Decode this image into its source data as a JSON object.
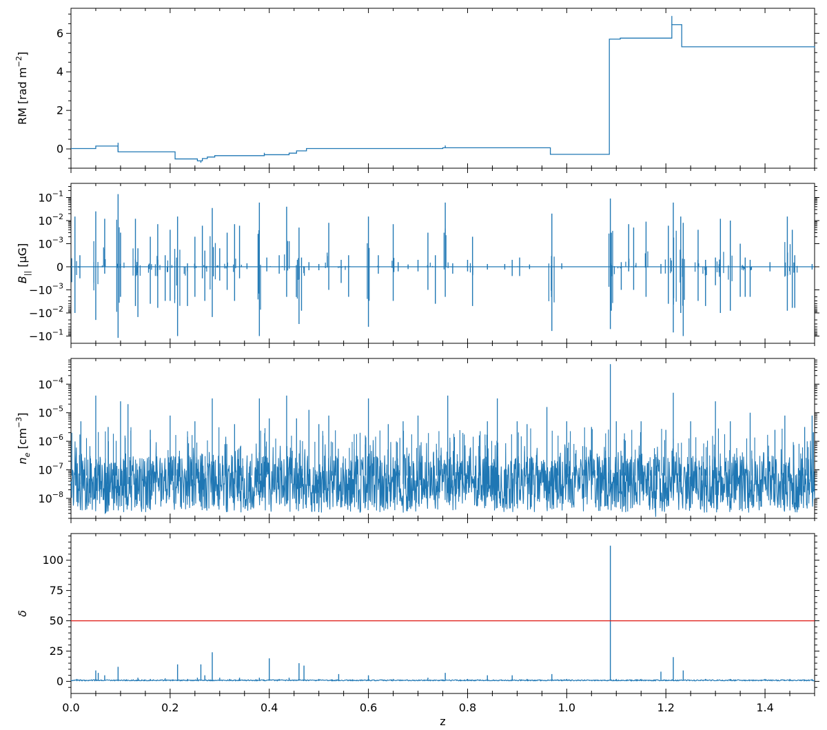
{
  "chart_data": [
    {
      "type": "line",
      "id": "rm",
      "ylabel": "RM [rad m⁻²]",
      "ylabel_main": "RM [rad m",
      "ylabel_sup": "−2",
      "ylabel_end": "]",
      "xlim": [
        0.0,
        1.5
      ],
      "ylim": [
        -1.0,
        7.3
      ],
      "yticks": [
        0,
        2,
        4,
        6
      ],
      "ytick_labels": [
        "0",
        "2",
        "4",
        "6"
      ],
      "color": "#1f77b4",
      "steps": [
        [
          0.0,
          0.02
        ],
        [
          0.05,
          0.15
        ],
        [
          0.095,
          -0.15
        ],
        [
          0.21,
          -0.52
        ],
        [
          0.255,
          -0.62
        ],
        [
          0.265,
          -0.5
        ],
        [
          0.275,
          -0.42
        ],
        [
          0.29,
          -0.35
        ],
        [
          0.39,
          -0.3
        ],
        [
          0.44,
          -0.22
        ],
        [
          0.455,
          -0.1
        ],
        [
          0.475,
          0.02
        ],
        [
          0.75,
          0.06
        ],
        [
          0.967,
          -0.28
        ],
        [
          1.086,
          5.7
        ],
        [
          1.108,
          5.75
        ],
        [
          1.212,
          6.45
        ],
        [
          1.232,
          5.3
        ],
        [
          1.5,
          5.25
        ]
      ],
      "spikes": [
        [
          0.095,
          0.32
        ],
        [
          0.262,
          -0.72
        ],
        [
          0.39,
          -0.2
        ],
        [
          0.755,
          0.18
        ],
        [
          1.212,
          6.9
        ]
      ]
    },
    {
      "type": "line",
      "id": "bpar",
      "ylabel": "B|| [μG]",
      "ylabel_main": "B",
      "ylabel_sub": "||",
      "ylabel_end": " [μG]",
      "xlim": [
        0.0,
        1.5
      ],
      "yscale": "symlog",
      "ylim": [
        -0.2,
        0.2
      ],
      "yticks_labels": [
        "10⁻¹",
        "10⁻²",
        "10⁻³",
        "0",
        "−10⁻³",
        "−10⁻²",
        "−10⁻¹"
      ],
      "yticks": [
        {
          "base": "10",
          "exp": "−1",
          "sign": ""
        },
        {
          "base": "10",
          "exp": "−2",
          "sign": ""
        },
        {
          "base": "10",
          "exp": "−3",
          "sign": ""
        },
        {
          "base": "0",
          "exp": "",
          "sign": ""
        },
        {
          "base": "10",
          "exp": "−3",
          "sign": "−"
        },
        {
          "base": "10",
          "exp": "−2",
          "sign": "−"
        },
        {
          "base": "10",
          "exp": "−1",
          "sign": "−"
        }
      ],
      "color": "#1f77b4",
      "spikes": [
        [
          0.008,
          0.015,
          -0.01
        ],
        [
          0.018,
          0.0005,
          -0.0005
        ],
        [
          0.05,
          0.025,
          -0.02
        ],
        [
          0.068,
          0.012,
          -0.0003
        ],
        [
          0.095,
          0.14,
          -0.12
        ],
        [
          0.1,
          0.003,
          -0.002
        ],
        [
          0.13,
          0.012,
          -0.005
        ],
        [
          0.135,
          0.0008,
          -0.015
        ],
        [
          0.16,
          0.002,
          -0.004
        ],
        [
          0.175,
          0.007,
          -0.006
        ],
        [
          0.19,
          0.0005,
          -0.003
        ],
        [
          0.2,
          0.004,
          -0.003
        ],
        [
          0.215,
          0.015,
          -0.1
        ],
        [
          0.235,
          0.00015,
          -0.005
        ],
        [
          0.25,
          0.002,
          -0.002
        ],
        [
          0.265,
          0.006,
          -0.0005
        ],
        [
          0.27,
          0.0007,
          -0.003
        ],
        [
          0.285,
          0.035,
          -0.015
        ],
        [
          0.3,
          0.0008,
          -0.0006
        ],
        [
          0.315,
          0.003,
          -0.001
        ],
        [
          0.33,
          0.007,
          -0.003
        ],
        [
          0.34,
          0.006,
          -0.0005
        ],
        [
          0.355,
          0.00015,
          -0.0001
        ],
        [
          0.38,
          0.06,
          -0.1
        ],
        [
          0.395,
          0.0004,
          -0.0002
        ],
        [
          0.42,
          0.0005,
          -0.0003
        ],
        [
          0.435,
          0.04,
          -0.002
        ],
        [
          0.46,
          0.005,
          -0.03
        ],
        [
          0.465,
          0.0004,
          -0.008
        ],
        [
          0.48,
          0.0002,
          -0.00015
        ],
        [
          0.5,
          0.00012,
          -0.00015
        ],
        [
          0.52,
          0.008,
          -0.001
        ],
        [
          0.545,
          0.0003,
          -0.0007
        ],
        [
          0.56,
          0.0005,
          -0.002
        ],
        [
          0.6,
          0.015,
          -0.04
        ],
        [
          0.62,
          0.0005,
          -0.0003
        ],
        [
          0.65,
          0.007,
          -0.003
        ],
        [
          0.66,
          0.0002,
          -0.0002
        ],
        [
          0.68,
          0.0001,
          -0.0001
        ],
        [
          0.7,
          0.0003,
          -0.0002
        ],
        [
          0.72,
          0.003,
          -0.001
        ],
        [
          0.735,
          0.0005,
          -0.004
        ],
        [
          0.755,
          0.06,
          -0.002
        ],
        [
          0.77,
          0.00015,
          -0.0003
        ],
        [
          0.8,
          0.0003,
          -0.0002
        ],
        [
          0.81,
          0.002,
          -0.005
        ],
        [
          0.84,
          0.00012,
          -0.00012
        ],
        [
          0.875,
          0.00012,
          -0.00012
        ],
        [
          0.89,
          0.0003,
          -0.0004
        ],
        [
          0.905,
          0.0004,
          -0.0004
        ],
        [
          0.925,
          0.0001,
          -0.0001
        ],
        [
          0.97,
          0.02,
          -0.06
        ],
        [
          0.99,
          0.00015,
          -0.0001
        ],
        [
          1.088,
          0.09,
          -0.05
        ],
        [
          1.09,
          0.003,
          -0.008
        ],
        [
          1.11,
          0.0002,
          -0.001
        ],
        [
          1.125,
          0.007,
          -0.0002
        ],
        [
          1.135,
          0.005,
          -0.001
        ],
        [
          1.16,
          0.009,
          -0.002
        ],
        [
          1.19,
          0.00012,
          -0.0003
        ],
        [
          1.205,
          0.006,
          -0.004
        ],
        [
          1.215,
          0.06,
          -0.07
        ],
        [
          1.23,
          0.015,
          -0.01
        ],
        [
          1.235,
          0.008,
          -0.1
        ],
        [
          1.265,
          0.004,
          -0.003
        ],
        [
          1.28,
          0.0003,
          -0.005
        ],
        [
          1.3,
          0.0004,
          -0.0008
        ],
        [
          1.31,
          0.012,
          -0.01
        ],
        [
          1.33,
          0.01,
          -0.008
        ],
        [
          1.35,
          0.001,
          -0.002
        ],
        [
          1.36,
          0.0004,
          -0.002
        ],
        [
          1.37,
          0.0003,
          -0.002
        ],
        [
          1.41,
          0.0002,
          -0.0002
        ],
        [
          1.445,
          0.015,
          -0.008
        ],
        [
          1.455,
          0.004,
          -0.006
        ],
        [
          1.46,
          0.0005,
          -0.006
        ],
        [
          1.495,
          0.00012,
          -0.00012
        ]
      ]
    },
    {
      "type": "line",
      "id": "ne",
      "ylabel": "nₑ [cm⁻³]",
      "ylabel_main": "n",
      "ylabel_sub": "e",
      "ylabel_mid": " [cm",
      "ylabel_sup": "−3",
      "ylabel_end": "]",
      "xlim": [
        0.0,
        1.5
      ],
      "yscale": "log",
      "ylim_exp": [
        -8.7,
        -3.1
      ],
      "yticks": [
        {
          "base": "10",
          "exp": "−4"
        },
        {
          "base": "10",
          "exp": "−5"
        },
        {
          "base": "10",
          "exp": "−6"
        },
        {
          "base": "10",
          "exp": "−7"
        },
        {
          "base": "10",
          "exp": "−8"
        }
      ],
      "ytick_labels": [
        "10⁻⁴",
        "10⁻⁵",
        "10⁻⁶",
        "10⁻⁷",
        "10⁻⁸"
      ],
      "color": "#1f77b4",
      "baseline_exp": -7.5,
      "noise_exp": [
        -8.5,
        -6.5
      ],
      "peaks": [
        [
          0.02,
          -5.3
        ],
        [
          0.05,
          -4.4
        ],
        [
          0.075,
          -5.5
        ],
        [
          0.1,
          -4.6
        ],
        [
          0.115,
          -4.7
        ],
        [
          0.16,
          -5.6
        ],
        [
          0.2,
          -5.1
        ],
        [
          0.25,
          -5.3
        ],
        [
          0.285,
          -4.5
        ],
        [
          0.33,
          -5.4
        ],
        [
          0.38,
          -4.5
        ],
        [
          0.4,
          -5.2
        ],
        [
          0.435,
          -4.4
        ],
        [
          0.455,
          -5.2
        ],
        [
          0.48,
          -4.9
        ],
        [
          0.5,
          -5.4
        ],
        [
          0.52,
          -5.1
        ],
        [
          0.6,
          -4.5
        ],
        [
          0.64,
          -5.4
        ],
        [
          0.67,
          -5.3
        ],
        [
          0.7,
          -5.1
        ],
        [
          0.76,
          -4.4
        ],
        [
          0.84,
          -5.3
        ],
        [
          0.86,
          -4.5
        ],
        [
          0.9,
          -5.3
        ],
        [
          0.92,
          -5.4
        ],
        [
          0.96,
          -4.8
        ],
        [
          1.0,
          -5.3
        ],
        [
          1.05,
          -5.5
        ],
        [
          1.088,
          -3.3
        ],
        [
          1.1,
          -5.3
        ],
        [
          1.15,
          -5.3
        ],
        [
          1.2,
          -5.6
        ],
        [
          1.215,
          -4.3
        ],
        [
          1.25,
          -5.3
        ],
        [
          1.3,
          -4.6
        ],
        [
          1.33,
          -5.3
        ],
        [
          1.37,
          -5.0
        ],
        [
          1.42,
          -5.6
        ],
        [
          1.44,
          -5.1
        ],
        [
          1.48,
          -5.5
        ],
        [
          1.495,
          -5.1
        ]
      ]
    },
    {
      "type": "line",
      "id": "delta",
      "ylabel": "δ",
      "xlabel": "z",
      "xlim": [
        0.0,
        1.5
      ],
      "ylim": [
        -10,
        122
      ],
      "yticks": [
        0,
        25,
        50,
        75,
        100
      ],
      "ytick_labels": [
        "0",
        "25",
        "50",
        "75",
        "100"
      ],
      "xticks": [
        0.0,
        0.2,
        0.4,
        0.6,
        0.8,
        1.0,
        1.2,
        1.4
      ],
      "xtick_labels": [
        "0.0",
        "0.2",
        "0.4",
        "0.6",
        "0.8",
        "1.0",
        "1.2",
        "1.4"
      ],
      "threshold": 50,
      "threshold_color": "#e0201b",
      "color": "#1f77b4",
      "spikes": [
        [
          0.012,
          2
        ],
        [
          0.05,
          9
        ],
        [
          0.055,
          7
        ],
        [
          0.068,
          5
        ],
        [
          0.095,
          12
        ],
        [
          0.135,
          3
        ],
        [
          0.16,
          2
        ],
        [
          0.19,
          2.5
        ],
        [
          0.215,
          14
        ],
        [
          0.235,
          2
        ],
        [
          0.255,
          3
        ],
        [
          0.262,
          14
        ],
        [
          0.27,
          5
        ],
        [
          0.285,
          24
        ],
        [
          0.3,
          3
        ],
        [
          0.32,
          2
        ],
        [
          0.34,
          3
        ],
        [
          0.38,
          3
        ],
        [
          0.4,
          19
        ],
        [
          0.42,
          2
        ],
        [
          0.44,
          3
        ],
        [
          0.46,
          15
        ],
        [
          0.47,
          13
        ],
        [
          0.5,
          2
        ],
        [
          0.54,
          6
        ],
        [
          0.6,
          5
        ],
        [
          0.65,
          2
        ],
        [
          0.72,
          3
        ],
        [
          0.755,
          7
        ],
        [
          0.8,
          2
        ],
        [
          0.84,
          5
        ],
        [
          0.89,
          5
        ],
        [
          0.92,
          2
        ],
        [
          0.97,
          6
        ],
        [
          1.0,
          2
        ],
        [
          1.088,
          112
        ],
        [
          1.1,
          2
        ],
        [
          1.15,
          2
        ],
        [
          1.19,
          8
        ],
        [
          1.215,
          20
        ],
        [
          1.235,
          9
        ],
        [
          1.28,
          2
        ],
        [
          1.33,
          2
        ],
        [
          1.4,
          2
        ],
        [
          1.45,
          2
        ],
        [
          1.495,
          2
        ]
      ]
    }
  ]
}
